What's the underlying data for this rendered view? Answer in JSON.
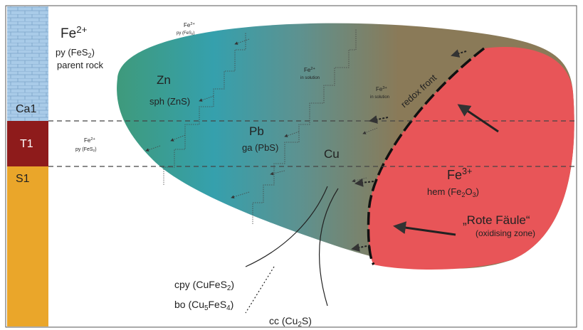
{
  "strata": [
    "Ca1",
    "T1",
    "S1"
  ],
  "parent": {
    "fe": {
      "text": "Fe",
      "sup": "2+"
    },
    "py": {
      "text": "py (FeS",
      "sub": "2",
      "rest": ")"
    },
    "note": "parent rock"
  },
  "top_fe": {
    "fe": {
      "text": "Fe",
      "sup": "2+"
    },
    "py": {
      "text": "py (FeS",
      "sub": "2",
      "rest": ")"
    }
  },
  "left_fe": {
    "fe": {
      "text": "Fe",
      "sup": "2+"
    },
    "py": {
      "text": "py (FeS",
      "sub": "2",
      "rest": ")"
    }
  },
  "zn": {
    "element": "Zn",
    "mineral": "sph (ZnS)"
  },
  "pb": {
    "element": "Pb",
    "mineral": "ga (PbS)"
  },
  "cu": "Cu",
  "sol1": {
    "fe": {
      "text": "Fe",
      "sup": "2+"
    },
    "note": "in solution"
  },
  "sol2": {
    "fe": {
      "text": "Fe",
      "sup": "3+"
    },
    "note": "in solution"
  },
  "redox": "redox front",
  "fe3": {
    "fe": {
      "text": "Fe",
      "sup": "3+"
    },
    "hem": {
      "text": "hem (Fe",
      "sub": "2",
      "mid": "O",
      "sub2": "3",
      "rest": ")"
    }
  },
  "rote": {
    "title": "„Rote Fäule“",
    "note": "(oxidising zone)"
  },
  "cpy": {
    "text": "cpy (CuFeS",
    "sub": "2",
    "rest": ")"
  },
  "bo": {
    "text": "bo (Cu",
    "sub": "5",
    "mid": "FeS",
    "sub2": "4",
    "rest": ")"
  },
  "cc": {
    "text": "cc (Cu",
    "sub": "2",
    "rest": "S)"
  }
}
